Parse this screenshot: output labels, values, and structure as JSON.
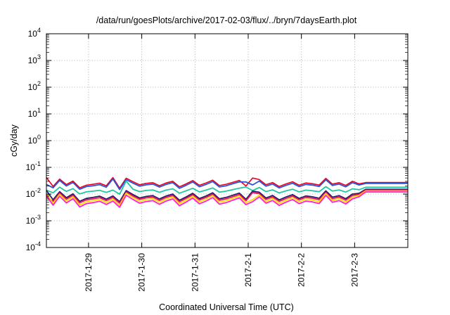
{
  "chart_data": {
    "type": "line",
    "title": "/data/run/goesPlots/archive/2017-02-03/flux/../bryn/7daysEarth.plot",
    "xlabel": "Coordinated Universal Time (UTC)",
    "ylabel": "cGy/day",
    "y_scale": "log",
    "ylim": [
      0.0001,
      10000
    ],
    "xlim": [
      "2017-01-28 05:00",
      "2017-02-03 23:59"
    ],
    "grid": true,
    "legend": "none",
    "y_ticks": [
      {
        "exp": "-4",
        "value": 0.0001
      },
      {
        "exp": "-3",
        "value": 0.001
      },
      {
        "exp": "-2",
        "value": 0.01
      },
      {
        "exp": "-1",
        "value": 0.1
      },
      {
        "exp": "0",
        "value": 1
      },
      {
        "exp": "1",
        "value": 10
      },
      {
        "exp": "2",
        "value": 100
      },
      {
        "exp": "3",
        "value": 1000
      },
      {
        "exp": "4",
        "value": 10000
      }
    ],
    "x_ticks": [
      {
        "label": "2017-1-29",
        "date": "2017-01-29"
      },
      {
        "label": "2017-1-30",
        "date": "2017-01-30"
      },
      {
        "label": "2017-1-31",
        "date": "2017-01-31"
      },
      {
        "label": "2017-2-1",
        "date": "2017-02-01"
      },
      {
        "label": "2017-2-2",
        "date": "2017-02-02"
      },
      {
        "label": "2017-2-3",
        "date": "2017-02-03"
      }
    ],
    "x": [
      "2017-01-28 05:00",
      "2017-01-28 08:00",
      "2017-01-28 11:00",
      "2017-01-28 14:00",
      "2017-01-28 17:00",
      "2017-01-28 20:00",
      "2017-01-28 23:00",
      "2017-01-29 02:00",
      "2017-01-29 05:00",
      "2017-01-29 08:00",
      "2017-01-29 11:00",
      "2017-01-29 14:00",
      "2017-01-29 17:00",
      "2017-01-29 20:00",
      "2017-01-29 23:00",
      "2017-01-30 02:00",
      "2017-01-30 05:00",
      "2017-01-30 08:00",
      "2017-01-30 11:00",
      "2017-01-30 14:00",
      "2017-01-30 17:00",
      "2017-01-30 20:00",
      "2017-01-30 23:00",
      "2017-01-31 02:00",
      "2017-01-31 05:00",
      "2017-01-31 08:00",
      "2017-01-31 11:00",
      "2017-01-31 14:00",
      "2017-01-31 17:00",
      "2017-01-31 20:00",
      "2017-01-31 23:00",
      "2017-02-01 02:00",
      "2017-02-01 05:00",
      "2017-02-01 08:00",
      "2017-02-01 11:00",
      "2017-02-01 14:00",
      "2017-02-01 17:00",
      "2017-02-01 20:00",
      "2017-02-01 23:00",
      "2017-02-02 02:00",
      "2017-02-02 05:00",
      "2017-02-02 08:00",
      "2017-02-02 11:00",
      "2017-02-02 14:00",
      "2017-02-02 17:00",
      "2017-02-02 20:00",
      "2017-02-02 23:00",
      "2017-02-03 02:00",
      "2017-02-03 05:00",
      "2017-02-03 08:00",
      "2017-02-03 11:00",
      "2017-02-03 14:00",
      "2017-02-03 17:00",
      "2017-02-03 20:00",
      "2017-02-03 23:59"
    ],
    "base_pattern": [
      1.0,
      0.72,
      1.45,
      0.86,
      1.2,
      0.63,
      0.81,
      0.88,
      0.98,
      0.76,
      1.0,
      0.61,
      1.58,
      1.13,
      0.84,
      0.96,
      1.03,
      0.77,
      1.0,
      1.18,
      0.69,
      0.92,
      1.26,
      0.8,
      1.0,
      1.31,
      0.78,
      0.88,
      1.06,
      1.28,
      0.75,
      0.95,
      1.38,
      0.84,
      1.04,
      0.71,
      0.91,
      1.12,
      0.81,
      1.0,
      0.93,
      0.82,
      1.55,
      0.9,
      1.03,
      0.79,
      1.18,
      1.0,
      0.77,
      1.03,
      0.88,
      1.06,
      0.94,
      0.87,
      0.79
    ],
    "series": [
      {
        "color": "#e8001c",
        "level": 0.026,
        "amp": 0.9,
        "spikes": [
          0,
          10,
          31,
          68
        ],
        "tail": 0.027
      },
      {
        "color": "#2a55d8",
        "level": 0.023,
        "amp": 0.9,
        "spikes": [
          10,
          30,
          69
        ],
        "tail": 0.025
      },
      {
        "color": "#21c6a2",
        "level": 0.014,
        "amp": 0.7,
        "spikes": [
          12,
          30
        ],
        "tail": 0.018
      },
      {
        "color": "#2b1a6e",
        "level": 0.0085,
        "amp": 1.0,
        "spikes": [
          0,
          31
        ],
        "tail": 0.015
      },
      {
        "color": "#f01050",
        "level": 0.0075,
        "amp": 1.0,
        "spikes": [
          31
        ],
        "tail": 0.014
      },
      {
        "color": "#ffe000",
        "level": 0.0065,
        "amp": 1.1,
        "spikes": [
          0
        ],
        "tail": 0.013
      },
      {
        "color": "#ff20d0",
        "level": 0.0055,
        "amp": 1.1,
        "spikes": [
          0
        ],
        "tail": 0.012
      }
    ]
  }
}
